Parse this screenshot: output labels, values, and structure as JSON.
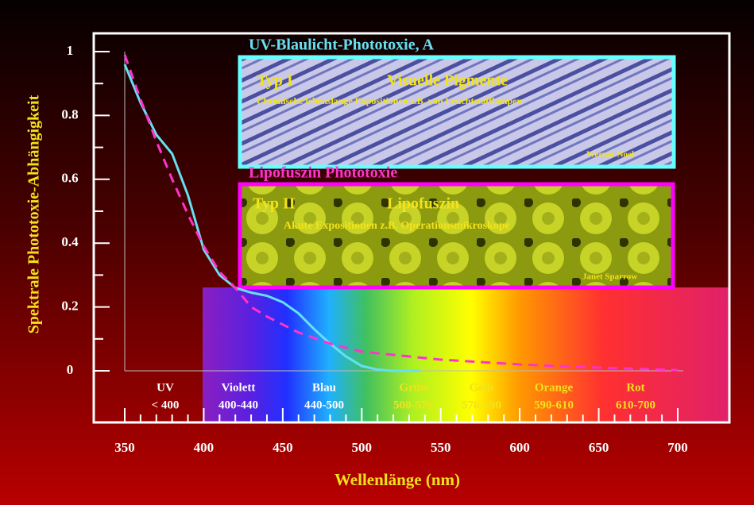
{
  "chart_data": {
    "type": "line",
    "xlabel": "Wellenlänge (nm)",
    "ylabel": "Spektrale Phototoxie-Abhängigkeit",
    "xlim": [
      350,
      700
    ],
    "ylim": [
      0,
      1
    ],
    "xticks": [
      350,
      400,
      450,
      500,
      550,
      600,
      650,
      700
    ],
    "yticks": [
      0,
      0.2,
      0.4,
      0.6,
      0.8,
      1
    ],
    "xminorticks": [
      360,
      370,
      380,
      390,
      410,
      420,
      430,
      440,
      460,
      470,
      480,
      490,
      510,
      520,
      530,
      540,
      560,
      570,
      580,
      590,
      610,
      620,
      630,
      640,
      660,
      670,
      680,
      690
    ],
    "yminorticks": [
      0.1,
      0.3,
      0.5,
      0.7,
      0.9
    ],
    "series": [
      {
        "color": "#66e0f0",
        "style": "solid",
        "x": [
          350,
          360,
          370,
          380,
          390,
          400,
          410,
          420,
          430,
          440,
          450,
          460,
          470,
          480,
          490,
          500,
          510,
          520,
          537
        ],
        "values": [
          0.96,
          0.84,
          0.74,
          0.68,
          0.55,
          0.38,
          0.3,
          0.26,
          0.245,
          0.235,
          0.215,
          0.18,
          0.13,
          0.085,
          0.045,
          0.015,
          0.004,
          0,
          0
        ]
      },
      {
        "color": "#ff33cc",
        "style": "dashed",
        "x": [
          350,
          360,
          370,
          380,
          390,
          400,
          410,
          420,
          430,
          440,
          450,
          460,
          480,
          500,
          550,
          600,
          650,
          700
        ],
        "values": [
          0.99,
          0.85,
          0.72,
          0.6,
          0.49,
          0.39,
          0.31,
          0.26,
          0.2,
          0.17,
          0.145,
          0.12,
          0.085,
          0.06,
          0.035,
          0.02,
          0.01,
          0.002
        ]
      }
    ],
    "panels": [
      {
        "heading": "UV-Blaulicht-Phototoxie, A",
        "type_label": "Typ I",
        "subject": "Visuelle Pigmente",
        "description": "Chronische lebenslange Expositionen z.B. von Leuchtstofflampen",
        "credit": "Werner Noel"
      },
      {
        "heading": "Lipofuszin Phototoxie",
        "type_label": "Typ II",
        "subject": "Lipofuszin",
        "description": "Akute Expositionen z.B. Operationsmikroskope",
        "credit": "Janet Sparrow"
      }
    ],
    "bands": [
      {
        "name": "UV",
        "range": "< 400"
      },
      {
        "name": "Violett",
        "range": "400-440"
      },
      {
        "name": "Blau",
        "range": "440-500"
      },
      {
        "name": "Grün",
        "range": "500-570"
      },
      {
        "name": "Gelb",
        "range": "570-590"
      },
      {
        "name": "Orange",
        "range": "590-610"
      },
      {
        "name": "Rot",
        "range": "610-700"
      }
    ]
  }
}
